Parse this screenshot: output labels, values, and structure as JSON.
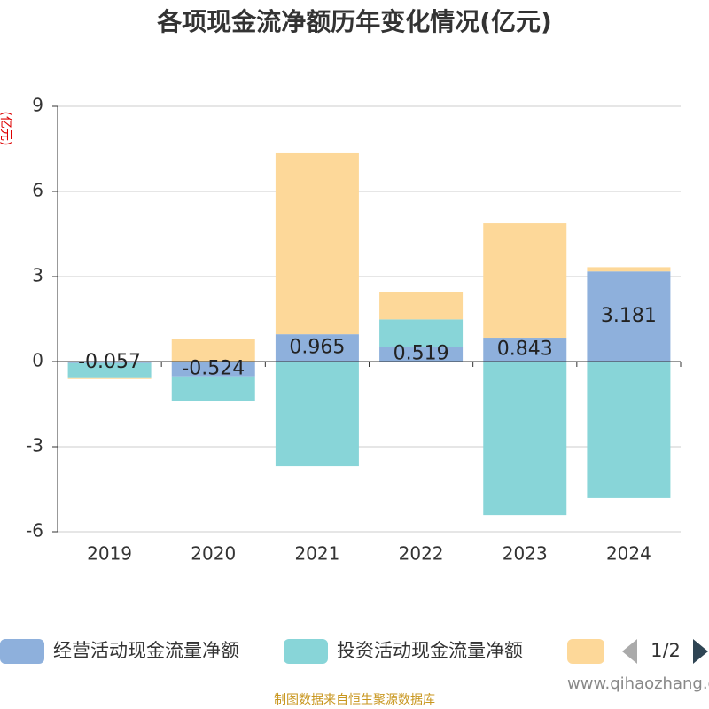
{
  "chart_data": {
    "type": "bar",
    "stacked": true,
    "title": "各项现金流净额历年变化情况(亿元)",
    "y_label": "(亿元)",
    "categories": [
      "2019",
      "2020",
      "2021",
      "2022",
      "2023",
      "2024"
    ],
    "series": [
      {
        "name": "经营活动现金流量净额",
        "color": "#8eb0dc",
        "values": [
          -0.057,
          -0.524,
          0.965,
          0.519,
          0.843,
          3.181
        ],
        "show_labels": true
      },
      {
        "name": "投资活动现金流量净额",
        "color": "#88d5d8",
        "values": [
          -0.5,
          -0.88,
          -3.69,
          0.97,
          -5.41,
          -4.81
        ]
      },
      {
        "color": "#fdd899",
        "values": [
          -0.06,
          0.8,
          6.38,
          0.97,
          4.03,
          0.15
        ]
      }
    ],
    "ylim": [
      -6,
      9
    ],
    "yticks": [
      -6,
      -3,
      0,
      3,
      6,
      9
    ],
    "grid": true,
    "legend_page": "1/2",
    "watermark": "www.qihaozhang.com",
    "source": "制图数据来自恒生聚源数据库"
  }
}
